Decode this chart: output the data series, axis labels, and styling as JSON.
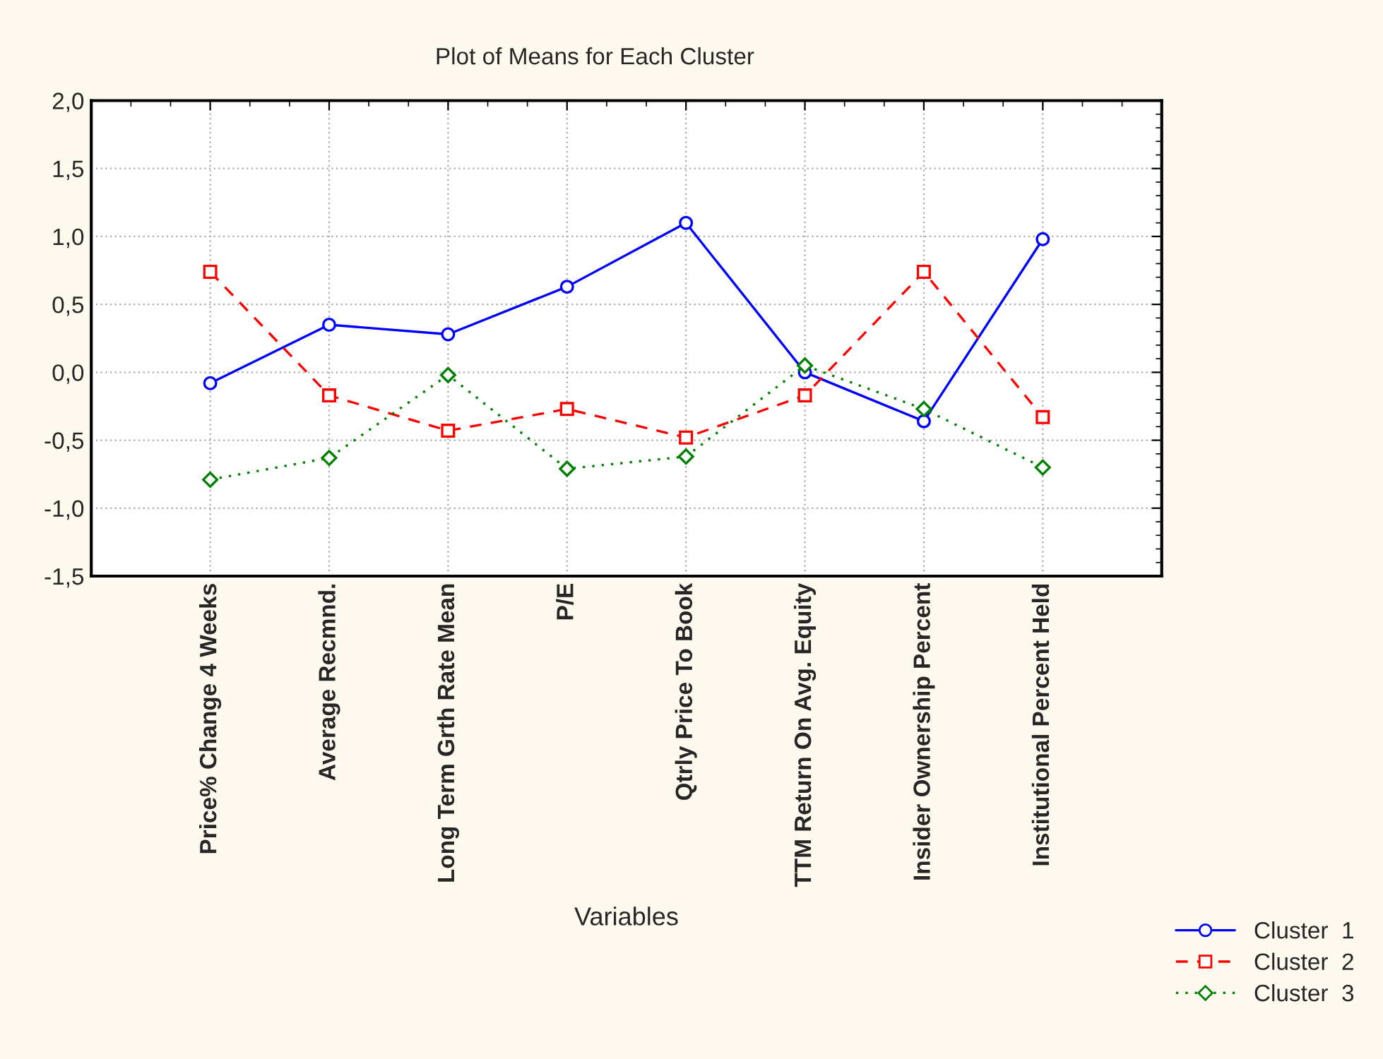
{
  "chart_data": {
    "type": "line",
    "title": "Plot of Means for Each Cluster",
    "xlabel": "Variables",
    "categories": [
      "Price% Change 4 Weeks",
      "Average Recmnd.",
      "Long Term Grth Rate Mean",
      "P/E",
      "Qtrly Price To Book",
      "TTM Return On Avg. Equity",
      "Insider Ownership Percent",
      "Institutional Percent Held"
    ],
    "series": [
      {
        "name": "Cluster  1",
        "color": "#0000ff",
        "values": [
          -0.08,
          0.35,
          0.28,
          0.63,
          1.1,
          0.0,
          -0.36,
          0.98
        ],
        "marker": "circle",
        "line_style": "solid"
      },
      {
        "name": "Cluster  2",
        "color": "#ff0000",
        "values": [
          0.74,
          -0.17,
          -0.43,
          -0.27,
          -0.48,
          -0.17,
          0.74,
          -0.33
        ],
        "marker": "square",
        "line_style": "dashed"
      },
      {
        "name": "Cluster  3",
        "color": "#008000",
        "values": [
          -0.79,
          -0.63,
          -0.02,
          -0.71,
          -0.62,
          0.05,
          -0.27,
          -0.7
        ],
        "marker": "diamond",
        "line_style": "dotted"
      }
    ],
    "ylim": [
      -1.5,
      2.0
    ],
    "yticks": [
      {
        "value": -1.5,
        "label": "-1,5"
      },
      {
        "value": -1.0,
        "label": "-1,0"
      },
      {
        "value": -0.5,
        "label": "-0,5"
      },
      {
        "value": 0.0,
        "label": "0,0"
      },
      {
        "value": 0.5,
        "label": "0,5"
      },
      {
        "value": 1.0,
        "label": "1,0"
      },
      {
        "value": 1.5,
        "label": "1,5"
      },
      {
        "value": 2.0,
        "label": "2,0"
      }
    ],
    "grid": true,
    "legend": "bottom right"
  }
}
